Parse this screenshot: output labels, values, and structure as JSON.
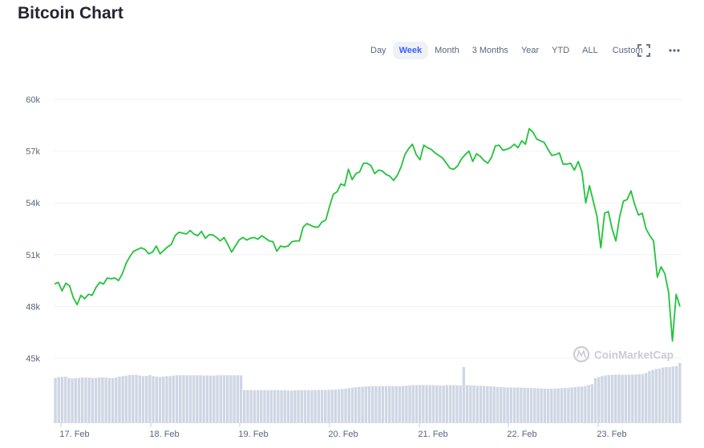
{
  "page": {
    "title": "Bitcoin Chart"
  },
  "toolbar": {
    "ranges": [
      "Day",
      "Week",
      "Month",
      "3 Months",
      "Year",
      "YTD",
      "ALL",
      "Custom"
    ],
    "active_range": "Week",
    "fullscreen_icon": "expand-icon",
    "more_icon": "more-dots-icon"
  },
  "watermark": {
    "text": "CoinMarketCap",
    "icon": "coinmarketcap-logo-icon"
  },
  "colors": {
    "line": "#16c784",
    "line_stroke": "#21c33a",
    "volume": "#cfd6e4",
    "grid": "#eff2f5",
    "axis_text": "#58667e"
  },
  "chart_data": {
    "type": "line",
    "title": "Bitcoin Chart",
    "xlabel": "",
    "ylabel": "",
    "x_tick_labels": [
      "17. Feb",
      "18. Feb",
      "19. Feb",
      "20. Feb",
      "21. Feb",
      "22. Feb",
      "23. Feb"
    ],
    "y_tick_labels": [
      "45k",
      "48k",
      "51k",
      "54k",
      "57k",
      "60k"
    ],
    "y_ticks": [
      45000,
      48000,
      51000,
      54000,
      57000,
      60000
    ],
    "ylim": [
      45000,
      60000
    ],
    "grid": true,
    "series": [
      {
        "values": [
          49300,
          49400,
          48900,
          49350,
          49200,
          48500,
          48100,
          48650,
          48450,
          48700,
          48650,
          49100,
          49400,
          49300,
          49650,
          49600,
          49650,
          49500,
          49900,
          50500,
          50900,
          51200,
          51300,
          51400,
          51300,
          51050,
          51150,
          51500,
          51050,
          51250,
          51450,
          51600,
          52100,
          52300,
          52250,
          52200,
          52400,
          52200,
          52100,
          52350,
          51950,
          52150,
          52150,
          52000,
          51800,
          52000,
          51600,
          51150,
          51500,
          51850,
          52000,
          51850,
          51950,
          52000,
          51900,
          52100,
          51950,
          51800,
          51750,
          51200,
          51500,
          51450,
          51500,
          51750,
          51800,
          51800,
          52600,
          52800,
          52700,
          52600,
          52600,
          52900,
          53000,
          53800,
          54500,
          54650,
          55100,
          55000,
          55950,
          55350,
          55700,
          55800,
          56300,
          56300,
          56150,
          55700,
          55900,
          55850,
          55650,
          55550,
          55300,
          55600,
          56100,
          56800,
          57150,
          57400,
          56800,
          56500,
          57350,
          57200,
          57100,
          56900,
          56750,
          56600,
          56300,
          56000,
          55950,
          56150,
          56550,
          56800,
          57000,
          56400,
          56850,
          56700,
          56450,
          56300,
          56650,
          57300,
          57350,
          57050,
          57100,
          57200,
          57400,
          57200,
          57600,
          57400,
          58300,
          58100,
          57700,
          57600,
          57500,
          57100,
          56750,
          56800,
          56900,
          56250,
          56250,
          56300,
          55900,
          56400,
          55800,
          54000,
          55000,
          54100,
          53200,
          51400,
          53400,
          53500,
          52500,
          51800,
          53200,
          54100,
          54200,
          54700,
          53900,
          53300,
          53400,
          52500,
          52100,
          51800,
          49700,
          50300,
          49900,
          48800,
          46000,
          48700,
          48000
        ]
      }
    ],
    "volume": [
      450,
      460,
      462,
      464,
      452,
      446,
      450,
      452,
      455,
      455,
      455,
      452,
      452,
      455,
      456,
      455,
      452,
      450,
      455,
      465,
      470,
      475,
      480,
      482,
      482,
      475,
      470,
      472,
      480,
      470,
      465,
      462,
      465,
      470,
      470,
      475,
      478,
      478,
      478,
      478,
      478,
      478,
      478,
      478,
      476,
      476,
      475,
      475,
      478,
      478,
      478,
      478,
      478,
      478,
      478,
      476,
      330,
      330,
      330,
      330,
      330,
      330,
      330,
      330,
      330,
      330,
      330,
      328,
      328,
      326,
      325,
      328,
      330,
      330,
      330,
      330,
      330,
      330,
      332,
      332,
      332,
      334,
      334,
      336,
      338,
      340,
      345,
      350,
      355,
      360,
      362,
      364,
      366,
      368,
      370,
      370,
      370,
      370,
      370,
      372,
      370,
      370,
      368,
      372,
      374,
      378,
      380,
      380,
      380,
      380,
      380,
      380,
      380,
      376,
      376,
      376,
      380,
      380,
      380,
      378,
      376,
      560,
      380,
      376,
      376,
      374,
      372,
      372,
      370,
      368,
      365,
      362,
      360,
      358,
      356,
      356,
      356,
      355,
      355,
      354,
      352,
      350,
      350,
      348,
      346,
      344,
      344,
      345,
      346,
      348,
      350,
      352,
      354,
      358,
      360,
      364,
      366,
      372,
      380,
      390,
      450,
      460,
      470,
      478,
      480,
      482,
      484,
      486,
      484,
      482,
      484,
      484,
      486,
      488,
      490,
      500,
      520,
      530,
      540,
      545,
      555,
      560,
      560,
      565,
      570,
      600
    ]
  }
}
